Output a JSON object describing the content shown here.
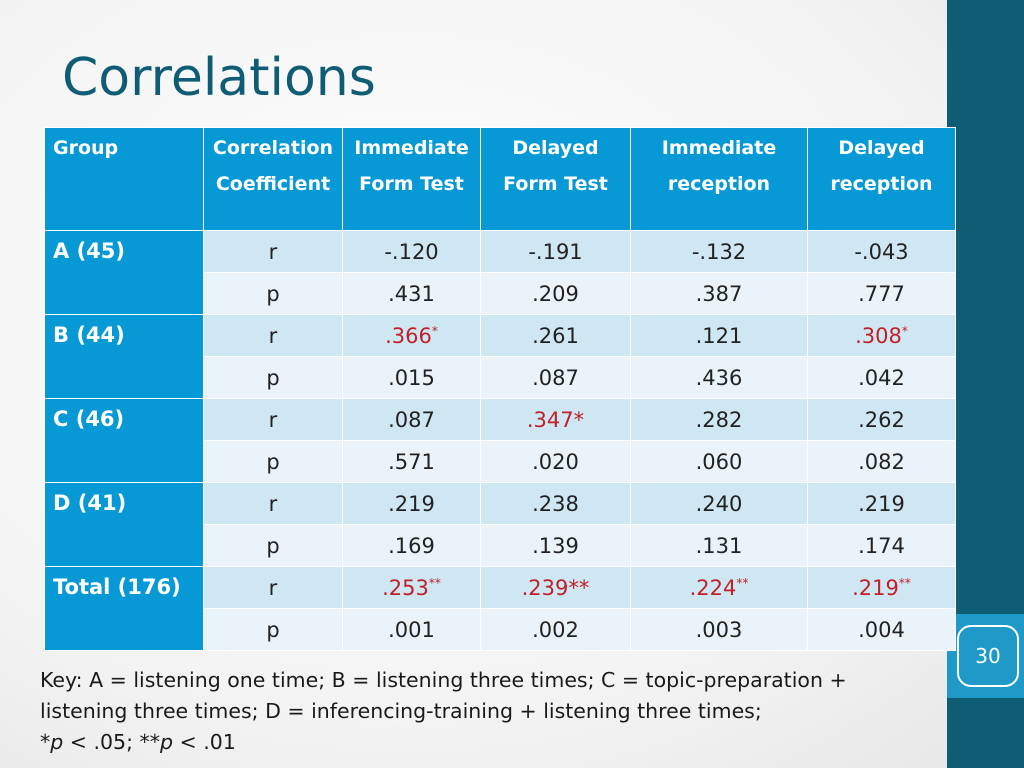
{
  "slide": {
    "title": "Correlations",
    "slide_number": "30"
  },
  "table": {
    "headers": {
      "group": "Group",
      "coef": [
        "Correlation",
        "Coefficient"
      ],
      "c1": [
        "Immediate",
        "Form Test"
      ],
      "c2": [
        "Delayed",
        "Form Test"
      ],
      "c3": [
        "Immediate",
        "reception"
      ],
      "c4": [
        "Delayed",
        "reception"
      ]
    },
    "groups": [
      {
        "label": "A (45)",
        "r": {
          "label": "r",
          "v": [
            {
              "val": "-.120",
              "star": "",
              "sig": false
            },
            {
              "val": "-.191",
              "star": "",
              "sig": false
            },
            {
              "val": "-.132",
              "star": "",
              "sig": false
            },
            {
              "val": "-.043",
              "star": "",
              "sig": false
            }
          ]
        },
        "p": {
          "label": "p",
          "v": [
            ".431",
            ".209",
            ".387",
            ".777"
          ]
        }
      },
      {
        "label": "B (44)",
        "r": {
          "label": "r",
          "v": [
            {
              "val": ".366",
              "star": "*",
              "sig": true
            },
            {
              "val": ".261",
              "star": "",
              "sig": false
            },
            {
              "val": ".121",
              "star": "",
              "sig": false
            },
            {
              "val": ".308",
              "star": "*",
              "sig": true
            }
          ]
        },
        "p": {
          "label": "p",
          "v": [
            ".015",
            ".087",
            ".436",
            ".042"
          ]
        }
      },
      {
        "label": "C (46)",
        "r": {
          "label": "r",
          "v": [
            {
              "val": ".087",
              "star": "",
              "sig": false
            },
            {
              "val": ".347*",
              "star": "",
              "sig": true
            },
            {
              "val": ".282",
              "star": "",
              "sig": false
            },
            {
              "val": ".262",
              "star": "",
              "sig": false
            }
          ]
        },
        "p": {
          "label": "p",
          "v": [
            ".571",
            ".020",
            ".060",
            ".082"
          ]
        }
      },
      {
        "label": "D (41)",
        "r": {
          "label": "r",
          "v": [
            {
              "val": ".219",
              "star": "",
              "sig": false
            },
            {
              "val": ".238",
              "star": "",
              "sig": false
            },
            {
              "val": ".240",
              "star": "",
              "sig": false
            },
            {
              "val": ".219",
              "star": "",
              "sig": false
            }
          ]
        },
        "p": {
          "label": "p",
          "v": [
            ".169",
            ".139",
            ".131",
            ".174"
          ]
        }
      },
      {
        "label": "Total (176)",
        "r": {
          "label": "r",
          "v": [
            {
              "val": ".253",
              "star": "**",
              "sig": true
            },
            {
              "val": ".239**",
              "star": "",
              "sig": true
            },
            {
              "val": ".224",
              "star": "**",
              "sig": true
            },
            {
              "val": ".219",
              "star": "**",
              "sig": true
            }
          ]
        },
        "p": {
          "label": "p",
          "v": [
            ".001",
            ".002",
            ".003",
            ".004"
          ]
        }
      }
    ]
  },
  "key": {
    "line1": "Key:  A = listening one time; B = listening three times; C = topic-preparation +",
    "line2": "listening three times; D = inferencing-training + listening three times;",
    "line3_a": "*",
    "line3_b": "p",
    "line3_c": " < .05; **",
    "line3_d": "p",
    "line3_e": " < .01"
  },
  "colors": {
    "header_bg": "#0798d6",
    "r_row_bg": "#cfe7f3",
    "p_row_bg": "#e9f3f9",
    "significant_text": "#c0202a",
    "title_color": "#0f5c75",
    "side_bar": "#0f5c75",
    "slide_number_box": "#1f9ac8"
  }
}
